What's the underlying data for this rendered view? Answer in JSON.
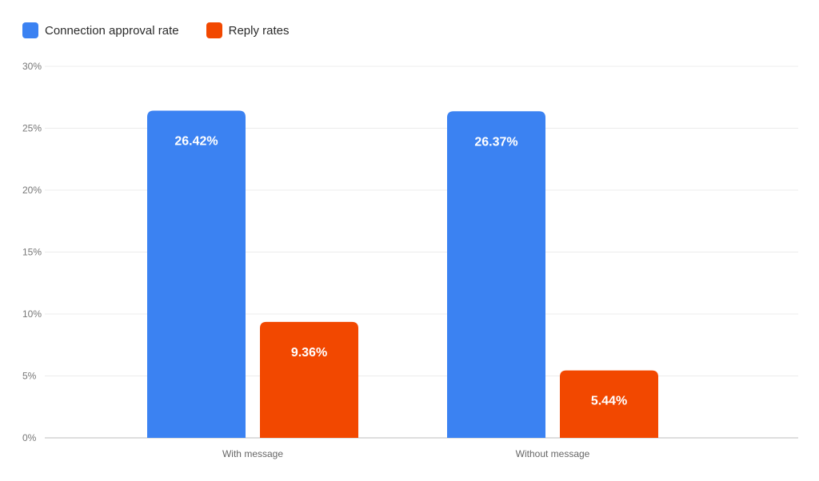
{
  "chart_data": {
    "type": "bar",
    "title": "",
    "xlabel": "",
    "ylabel": "",
    "categories": [
      "With message",
      "Without message"
    ],
    "series": [
      {
        "name": "Connection approval rate",
        "color": "#3b82f2",
        "values": [
          26.42,
          26.37
        ],
        "labels": [
          "26.42%",
          "26.37%"
        ]
      },
      {
        "name": "Reply rates",
        "color": "#f24800",
        "values": [
          9.36,
          5.44
        ],
        "labels": [
          "9.36%",
          "5.44%"
        ]
      }
    ],
    "ylim": [
      0,
      30
    ],
    "yticks": [
      0,
      5,
      10,
      15,
      20,
      25,
      30
    ],
    "ytick_labels": [
      "0%",
      "5%",
      "10%",
      "15%",
      "20%",
      "25%",
      "30%"
    ],
    "grid": true,
    "legend_position": "top-left"
  }
}
